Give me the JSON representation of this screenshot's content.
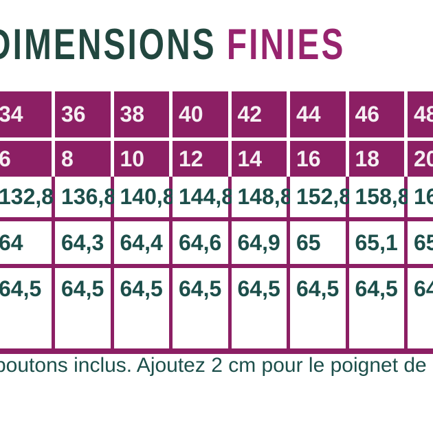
{
  "title": {
    "part1": "DIMENSIONS",
    "part2": "FINIES"
  },
  "colors": {
    "table_magenta": "#8c1f64",
    "title_teal": "#22473f",
    "title_magenta": "#97246e",
    "data_teal": "#1d4f4b",
    "header_text": "#f6eff3"
  },
  "table": {
    "header_rows": [
      [
        "34",
        "36",
        "38",
        "40",
        "42",
        "44",
        "46",
        "48"
      ],
      [
        "6",
        "8",
        "10",
        "12",
        "14",
        "16",
        "18",
        "20"
      ]
    ],
    "data_rows": [
      [
        "132,8",
        "136,8",
        "140,8",
        "144,8",
        "148,8",
        "152,8",
        "158,8",
        "16"
      ],
      [
        "64",
        "64,3",
        "64,4",
        "64,6",
        "64,9",
        "65",
        "65,1",
        "65"
      ],
      [
        "64,5",
        "64,5",
        "64,5",
        "64,5",
        "64,5",
        "64,5",
        "64,5",
        "64"
      ]
    ]
  },
  "footnote": "boutons inclus. Ajoutez 2 cm pour le poignet de m"
}
